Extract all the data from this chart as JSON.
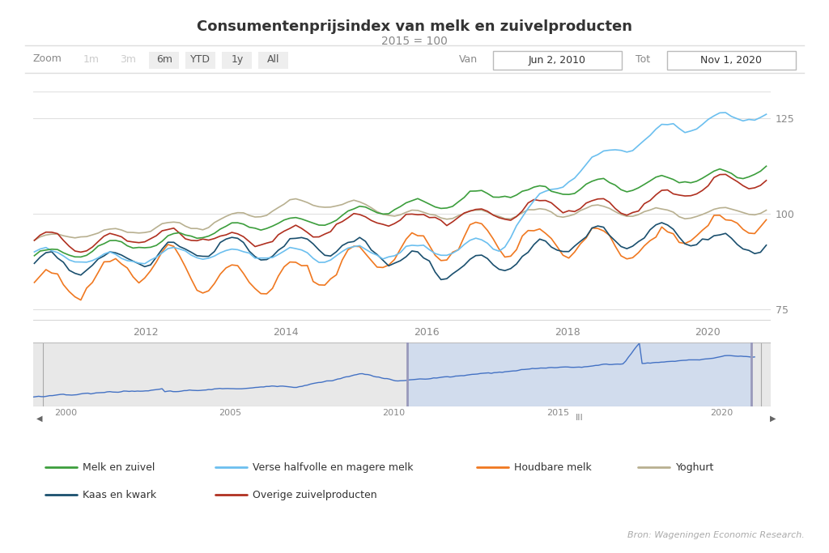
{
  "title": "Consumentenprijsindex van melk en zuivelproducten",
  "subtitle": "2015 = 100",
  "source": "Bron: Wageningen Economic Research.",
  "zoom_label": "Zoom",
  "zoom_buttons": [
    "1m",
    "3m",
    "6m",
    "YTD",
    "1y",
    "All"
  ],
  "van_label": "Van",
  "tot_label": "Tot",
  "van_date": "Jun 2, 2010",
  "tot_date": "Nov 1, 2020",
  "main_xlim": [
    2010.4,
    2020.9
  ],
  "main_ylim": [
    72,
    132
  ],
  "main_yticks": [
    75,
    100,
    125
  ],
  "nav_xlim": [
    1999.0,
    2021.5
  ],
  "nav_ylim": [
    55,
    145
  ],
  "nav_selection": [
    2010.4,
    2020.9
  ],
  "year_ticks_main": [
    2012,
    2014,
    2016,
    2018,
    2020
  ],
  "year_ticks_nav": [
    2000,
    2005,
    2010,
    2015,
    2020
  ],
  "series_colors": {
    "melk_zuivel": "#3c9e3c",
    "verse_melk": "#6bbfef",
    "houdbare_melk": "#f07820",
    "yoghurt": "#b8b090",
    "kaas_kwark": "#1a4f6e",
    "overige": "#b03020"
  },
  "legend": [
    {
      "label": "Melk en zuivel",
      "color": "#3c9e3c"
    },
    {
      "label": "Verse halfvolle en magere melk",
      "color": "#6bbfef"
    },
    {
      "label": "Houdbare melk",
      "color": "#f07820"
    },
    {
      "label": "Yoghurt",
      "color": "#b8b090"
    },
    {
      "label": "Kaas en kwark",
      "color": "#1a4f6e"
    },
    {
      "label": "Overige zuivelproducten",
      "color": "#b03020"
    }
  ],
  "background_color": "#ffffff",
  "grid_color": "#e0e0e0",
  "nav_fill_color": "#c8d8f0",
  "nav_fill_alpha": 0.7,
  "nav_bg_color": "#e8e8e8"
}
